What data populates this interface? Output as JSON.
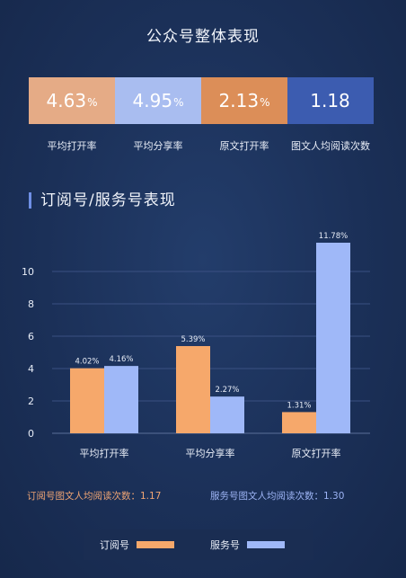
{
  "title": "公众号整体表现",
  "kpis": [
    {
      "value": "4.63",
      "unit": "%",
      "label": "平均打开率",
      "color": "#e5ab86"
    },
    {
      "value": "4.95",
      "unit": "%",
      "label": "平均分享率",
      "color": "#a9bdf0"
    },
    {
      "value": "2.13",
      "unit": "%",
      "label": "原文打开率",
      "color": "#dc8e58"
    },
    {
      "value": "1.18",
      "unit": "",
      "label": "图文人均阅读次数",
      "color": "#3c5cb0"
    }
  ],
  "section_title": "订阅号/服务号表现",
  "chart_data": {
    "type": "bar",
    "categories": [
      "平均打开率",
      "平均分享率",
      "原文打开率"
    ],
    "series": [
      {
        "name": "订阅号",
        "values": [
          4.02,
          5.39,
          1.31
        ],
        "labels": [
          "4.02%",
          "5.39%",
          "1.31%"
        ],
        "color": "#f6a86b"
      },
      {
        "name": "服务号",
        "values": [
          4.16,
          2.27,
          11.78
        ],
        "labels": [
          "4.16%",
          "2.27%",
          "11.78%"
        ],
        "color": "#9fb8f8"
      }
    ],
    "ylim": [
      0,
      11.78
    ],
    "yticks": [
      "0",
      "2",
      "4",
      "6",
      "8",
      "10"
    ],
    "ytick_values": [
      0,
      2,
      4,
      6,
      8,
      10
    ],
    "grid": "horizontal",
    "legend": "bottom"
  },
  "averages": {
    "sub": "订阅号图文人均阅读次数：1.17",
    "svc": "服务号图文人均阅读次数：1.30"
  },
  "legend": {
    "sub": "订阅号",
    "svc": "服务号",
    "sub_color": "#f6a86b",
    "svc_color": "#9fb8f8"
  }
}
